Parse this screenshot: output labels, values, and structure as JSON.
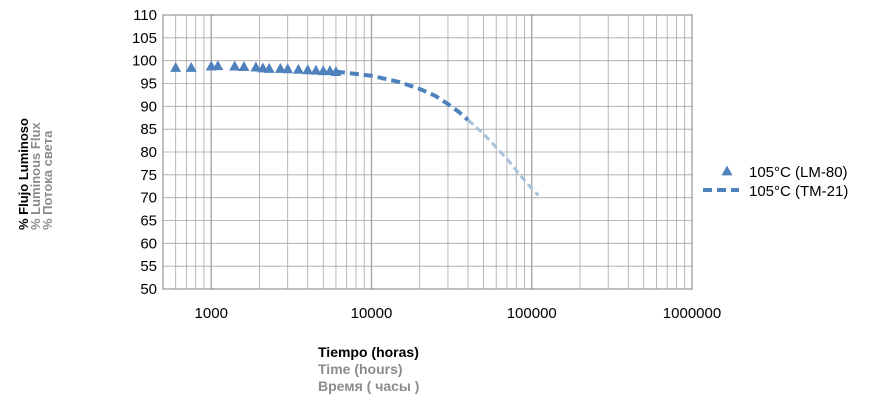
{
  "chart_data": {
    "type": "scatter",
    "x_scale": "log",
    "xlim": [
      500,
      1000000
    ],
    "ylim": [
      50,
      110
    ],
    "x_ticks": [
      "1000",
      "10000",
      "100000",
      "1000000"
    ],
    "y_ticks": [
      "50",
      "55",
      "60",
      "65",
      "70",
      "75",
      "80",
      "85",
      "90",
      "95",
      "100",
      "105",
      "110"
    ],
    "ylabel": [
      "% Flujo Luminoso",
      "% Luminous Flux",
      "% Потока  света"
    ],
    "xlabel": [
      "Tiempo (horas)",
      "Time (hours)",
      "Время ( часы )"
    ],
    "grid": true,
    "legend_position": "right",
    "series": [
      {
        "name": "105°C (LM-80)",
        "style": "triangle-markers",
        "color": "#4f81bd",
        "x": [
          600,
          750,
          1000,
          1100,
          1400,
          1600,
          1900,
          2100,
          2300,
          2700,
          3000,
          3500,
          4000,
          4500,
          5000,
          5500,
          6000
        ],
        "y": [
          98.5,
          98.5,
          98.8,
          98.9,
          98.8,
          98.7,
          98.6,
          98.4,
          98.3,
          98.3,
          98.2,
          98.1,
          98.0,
          97.9,
          97.8,
          97.8,
          97.6
        ]
      },
      {
        "name": "105°C (TM-21)",
        "style": "dashed-line",
        "color": "#4f81bd",
        "projection_color": "#a8c1df",
        "x": [
          6000,
          10000,
          15000,
          20000,
          25000,
          30000,
          35000,
          40000,
          50000,
          60000,
          70000,
          80000,
          90000,
          100000,
          110000
        ],
        "y": [
          97.6,
          96.7,
          95.3,
          93.8,
          92.3,
          90.5,
          88.8,
          87.0,
          84.0,
          81.0,
          78.5,
          76.0,
          73.8,
          72.0,
          70.5
        ],
        "solid_until_x": 40000
      }
    ]
  }
}
